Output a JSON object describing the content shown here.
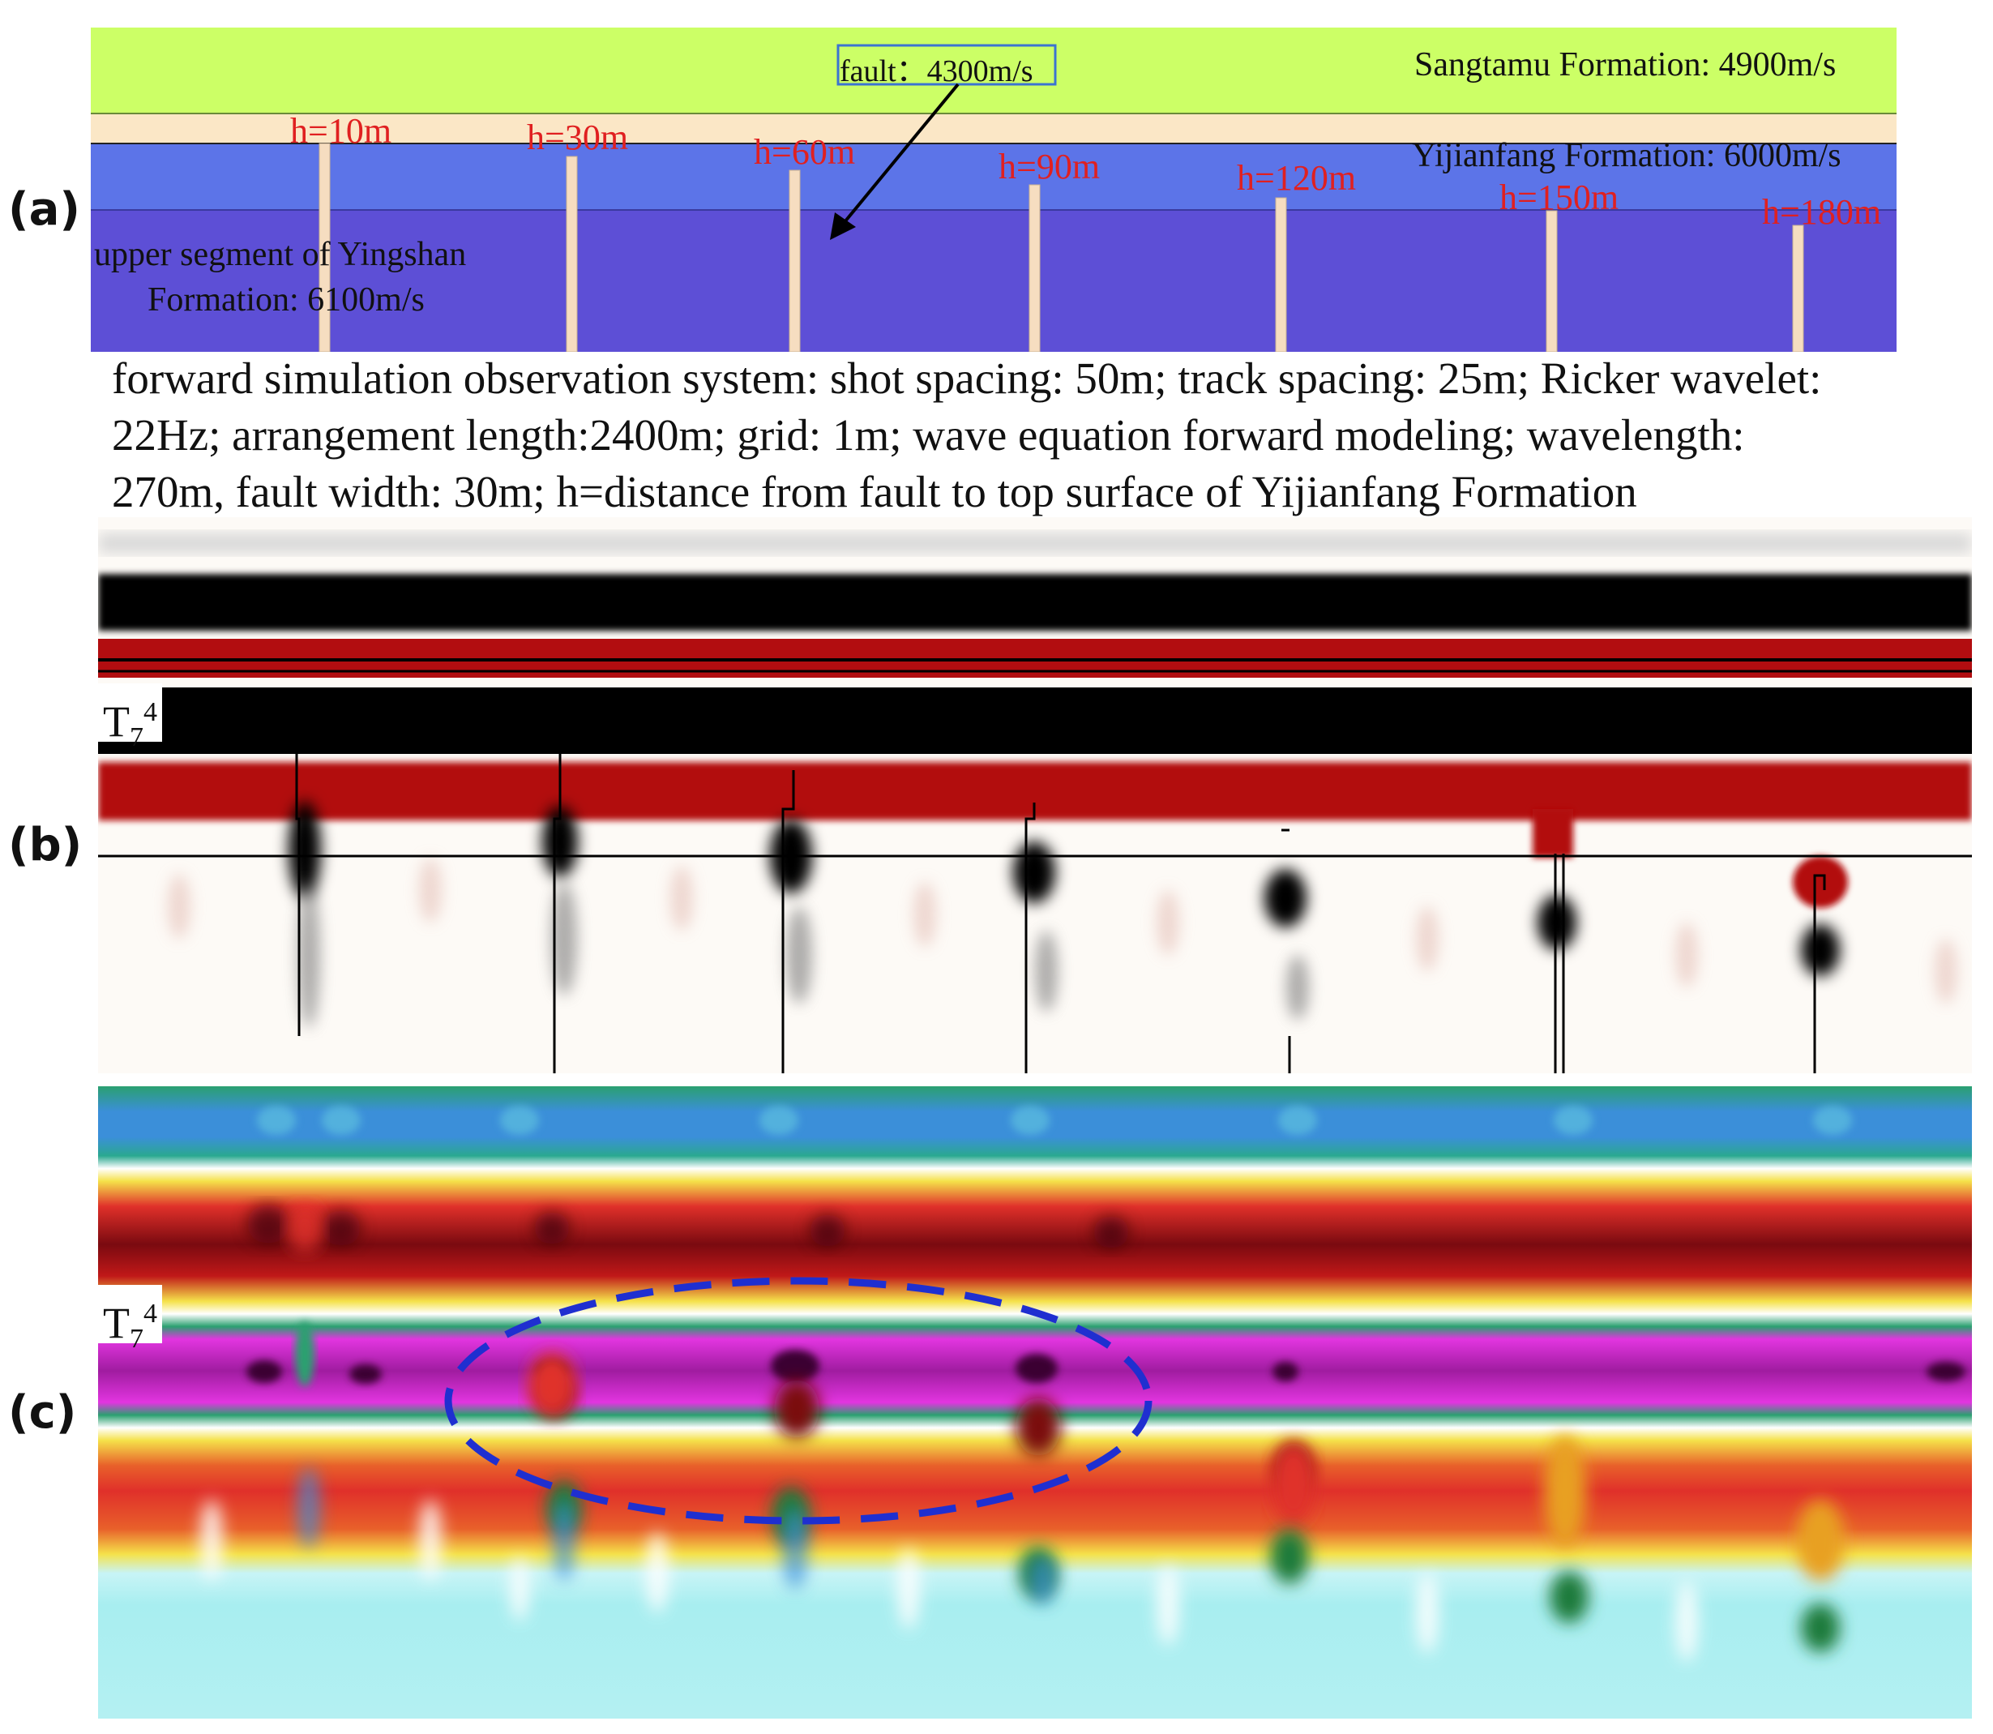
{
  "panel_labels": {
    "a": "(a)",
    "b": "(b)",
    "c": "(c)"
  },
  "panel_a": {
    "fault_box": "fault：4300m/s",
    "formations": {
      "sangtamu": "Sangtamu Formation: 4900m/s",
      "yijianfang": "Yijianfang Formation: 6000m/s",
      "yingshan_line1": "upper segment of Yingshan",
      "yingshan_line2": "Formation: 6100m/s"
    },
    "fault_labels": [
      "h=10m",
      "h=30m",
      "h=60m",
      "h=90m",
      "h=120m",
      "h=150m",
      "h=180m"
    ],
    "colors": {
      "sangtamu": "#ccff66",
      "thin_layer": "#fbe7c6",
      "yijianfang": "#5c74e8",
      "yingshan": "#5d4fd6",
      "fault": "#f6ddc0",
      "label_red": "#e02020",
      "fault_box_border": "#3b73d1"
    }
  },
  "caption": {
    "line1": "forward simulation observation system: shot spacing: 50m; track spacing: 25m; Ricker wavelet:",
    "line2": "22Hz; arrangement length:2400m; grid: 1m;  wave equation forward modeling; wavelength:",
    "line3": "270m, fault width: 30m; h=distance from fault to top surface of Yijianfang Formation"
  },
  "horizon_label": {
    "base": "T",
    "sub": "7",
    "sup": "4"
  },
  "panel_b": {
    "colors": {
      "trough": "#000000",
      "peak": "#b20d10",
      "background": "#fdfaf6"
    }
  },
  "panel_c": {
    "colors": {
      "blue_band": "#3b8fd9",
      "dark_red_band": "#7a0a10",
      "magenta_band": "#e235e0",
      "red_band": "#e0302a",
      "yellow": "#f5e24a",
      "cyan_bg": "#a8eef0",
      "ellipse": "#1f2fd0"
    }
  }
}
